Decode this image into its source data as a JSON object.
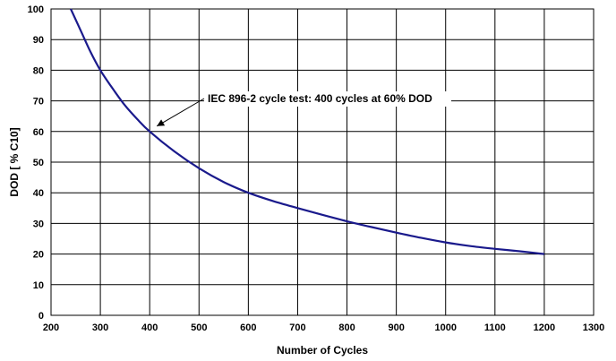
{
  "chart_data": {
    "type": "line",
    "title": "",
    "xlabel": "Number of Cycles",
    "ylabel": "DOD [ % C10]",
    "xlim": [
      200,
      1300
    ],
    "ylim": [
      0,
      100
    ],
    "x_ticks": [
      200,
      300,
      400,
      500,
      600,
      700,
      800,
      900,
      1000,
      1100,
      1200,
      1300
    ],
    "y_ticks": [
      0,
      10,
      20,
      30,
      40,
      50,
      60,
      70,
      80,
      90,
      100
    ],
    "grid": true,
    "legend": "none",
    "series": [
      {
        "color": "#1a1a8c",
        "x": [
          240,
          260,
          280,
          300,
          325,
          350,
          375,
          400,
          450,
          500,
          550,
          600,
          650,
          700,
          750,
          800,
          850,
          900,
          950,
          1000,
          1050,
          1100,
          1150,
          1200
        ],
        "y": [
          100,
          93,
          86,
          80,
          74,
          68.5,
          64,
          60,
          53.5,
          48,
          43.5,
          40,
          37.3,
          35,
          32.8,
          30.7,
          28.8,
          27,
          25.3,
          23.8,
          22.6,
          21.7,
          20.9,
          20
        ]
      }
    ],
    "annotations": [
      {
        "text": "IEC 896-2 cycle test: 400 cycles at 60% DOD",
        "point": [
          400,
          60
        ]
      }
    ]
  }
}
